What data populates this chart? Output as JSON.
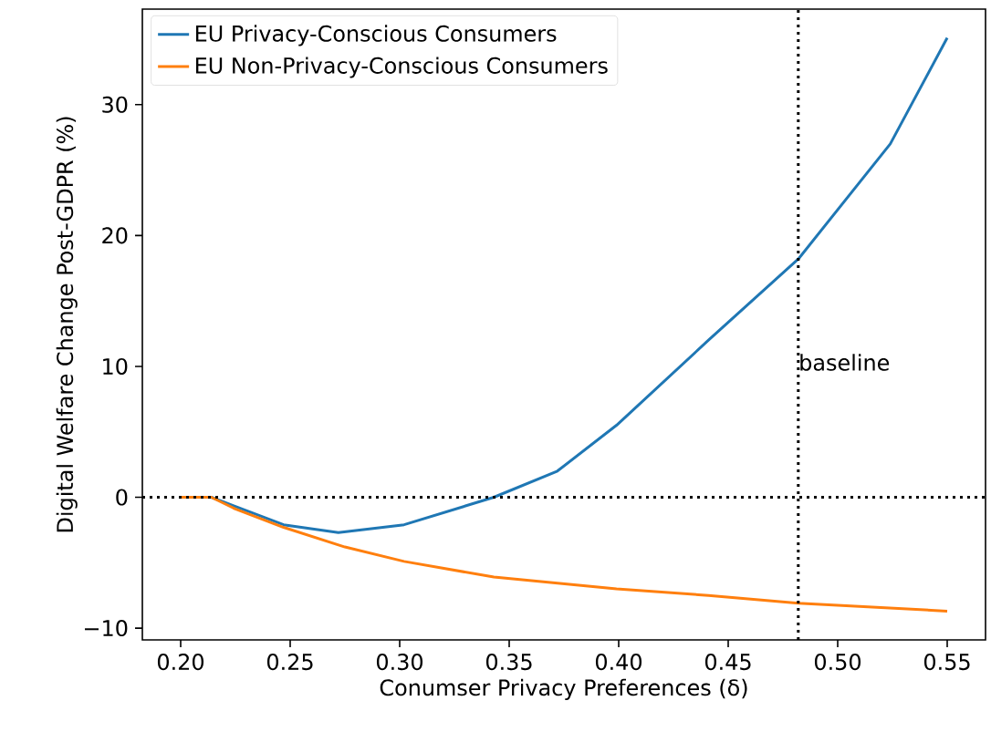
{
  "chart_data": {
    "type": "line",
    "xlabel": "Conumser Privacy Preferences (δ)",
    "ylabel": "Digital Welfare Change Post-GDPR (%)",
    "xlim": [
      0.1825,
      0.5675
    ],
    "ylim": [
      -10.9,
      37.3
    ],
    "xticks": [
      {
        "value": 0.2,
        "label": "0.20"
      },
      {
        "value": 0.25,
        "label": "0.25"
      },
      {
        "value": 0.3,
        "label": "0.30"
      },
      {
        "value": 0.35,
        "label": "0.35"
      },
      {
        "value": 0.4,
        "label": "0.40"
      },
      {
        "value": 0.45,
        "label": "0.45"
      },
      {
        "value": 0.5,
        "label": "0.50"
      },
      {
        "value": 0.55,
        "label": "0.55"
      }
    ],
    "yticks": [
      {
        "value": -10,
        "label": "−10"
      },
      0,
      10,
      20,
      30
    ],
    "legend": "top left",
    "grid": false,
    "marker": "none",
    "line_style": "solid",
    "series": [
      {
        "name": "EU Privacy-Conscious Consumers",
        "color": "#1f77b4",
        "x": [
          0.2,
          0.214,
          0.247,
          0.272,
          0.302,
          0.343,
          0.372,
          0.399,
          0.441,
          0.482,
          0.524,
          0.55
        ],
        "values": [
          0,
          0,
          -2.1,
          -2.7,
          -2.1,
          0,
          2.0,
          5.5,
          12.0,
          18.2,
          27.0,
          35.1
        ]
      },
      {
        "name": "EU Non-Privacy-Conscious Consumers",
        "color": "#ff7f0e",
        "x": [
          0.2,
          0.214,
          0.225,
          0.247,
          0.275,
          0.302,
          0.343,
          0.399,
          0.441,
          0.482,
          0.55
        ],
        "values": [
          0,
          0,
          -0.9,
          -2.3,
          -3.8,
          -4.9,
          -6.1,
          -7.0,
          -7.5,
          -8.1,
          -8.7
        ]
      }
    ],
    "ref_lines": [
      {
        "axis": "y",
        "value": 0,
        "color": "#000000",
        "line_style": "dotted"
      },
      {
        "axis": "x",
        "value": 0.482,
        "label": "baseline",
        "color": "#000000",
        "line_style": "dotted"
      }
    ]
  }
}
